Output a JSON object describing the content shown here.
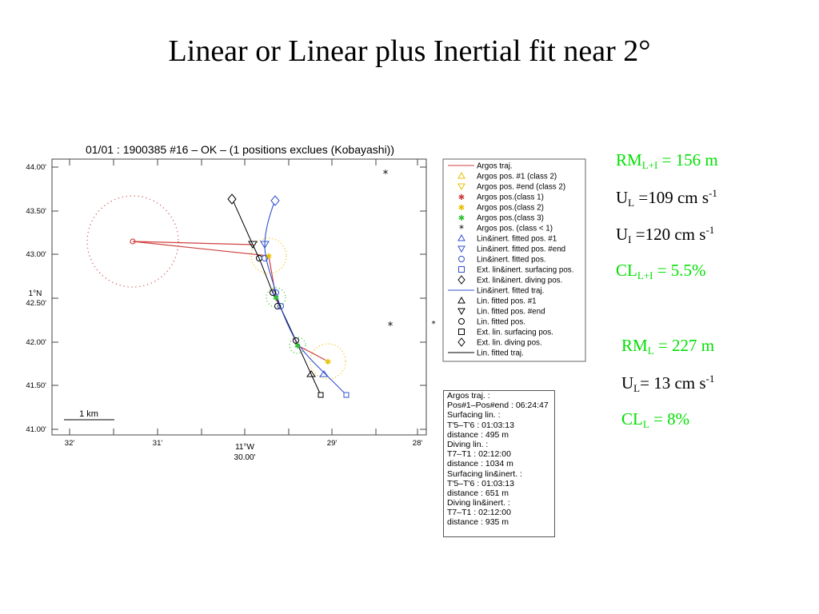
{
  "title": "Linear or Linear plus Inertial fit near 2°",
  "plot": {
    "header": "01/01 : 1900385 #16 – OK – (1 positions exclues (Kobayashi))",
    "y_ticks": [
      "44.00'",
      "43.50'",
      "43.00'",
      "42.50'",
      "42.00'",
      "41.50'",
      "41.00'"
    ],
    "y_axis_label": "1°N",
    "x_ticks": [
      "32'",
      "31'",
      "29'",
      "28'"
    ],
    "x_axis_label": "11°W",
    "x_mid_tick": "30.00'",
    "scale_label": "1 km"
  },
  "legend": [
    {
      "label": "Argos traj.",
      "symbol": "line",
      "color": "#d04040"
    },
    {
      "label": "Argos pos. #1 (class 2)",
      "symbol": "triangle-up",
      "color": "#e8c000"
    },
    {
      "label": "Argos pos. #end (class 2)",
      "symbol": "triangle-down",
      "color": "#e8c000"
    },
    {
      "label": "Argos pos.(class 1)",
      "symbol": "star",
      "color": "#d04040"
    },
    {
      "label": "Argos pos.(class 2)",
      "symbol": "star",
      "color": "#e8c000"
    },
    {
      "label": "Argos pos.(class 3)",
      "symbol": "star",
      "color": "#30c030"
    },
    {
      "label": "Argos pos. (class < 1)",
      "symbol": "asterisk",
      "color": "#000000"
    },
    {
      "label": "Lin&inert. fitted pos. #1",
      "symbol": "triangle-up",
      "color": "#3050d0"
    },
    {
      "label": "Lin&inert. fitted pos. #end",
      "symbol": "triangle-down",
      "color": "#3050d0"
    },
    {
      "label": "Lin&inert. fitted pos.",
      "symbol": "circle",
      "color": "#3050d0"
    },
    {
      "label": "Ext. lin&inert. surfacing pos.",
      "symbol": "square",
      "color": "#3050d0"
    },
    {
      "label": "Ext. lin&inert. diving pos.",
      "symbol": "diamond",
      "color": "#000000"
    },
    {
      "label": "Lin&inert. fitted traj.",
      "symbol": "line",
      "color": "#3050d0"
    },
    {
      "label": "Lin. fitted pos. #1",
      "symbol": "triangle-up",
      "color": "#000000"
    },
    {
      "label": "Lin. fitted pos. #end",
      "symbol": "triangle-down",
      "color": "#000000"
    },
    {
      "label": "Lin. fitted pos.",
      "symbol": "circle",
      "color": "#000000"
    },
    {
      "label": "Ext. lin. surfacing pos.",
      "symbol": "square",
      "color": "#000000"
    },
    {
      "label": "Ext. lin. diving pos.",
      "symbol": "diamond",
      "color": "#000000"
    },
    {
      "label": "Lin. fitted traj.",
      "symbol": "line",
      "color": "#000000"
    }
  ],
  "info_box": [
    "Argos traj. :",
    "Pos#1–Pos#end : 06:24:47",
    "Surfacing lin. :",
    "T'5–T'6 : 01:03:13",
    "distance : 495 m",
    "Diving lin. :",
    "T7–T1 : 02:12:00",
    "distance : 1034 m",
    "Surfacing lin&inert. :",
    "T'5–T'6 : 01:03:13",
    "distance : 651 m",
    "Diving lin&inert. :",
    "T7–T1 : 02:12:00",
    "distance : 935 m"
  ],
  "stats_lin_inert": {
    "rm_main": "RM",
    "rm_sub": "L+I",
    "rm_rest": " = 156 m",
    "ul_main": "U",
    "ul_sub": "L",
    "ul_rest": " =109 cm s",
    "ul_sup": "-1",
    "ui_main": "U",
    "ui_sub": "I",
    "ui_rest": " =120 cm s",
    "ui_sup": "-1",
    "cl_main": "CL",
    "cl_sub": "L+I",
    "cl_rest": " = 5.5%"
  },
  "stats_lin": {
    "rm_main": "RM",
    "rm_sub": "L",
    "rm_rest": " = 227 m",
    "ul_main": "U",
    "ul_sub": "L",
    "ul_rest": "= 13 cm s",
    "ul_sup": "-1",
    "cl_main": "CL",
    "cl_sub": "L",
    "cl_rest": " = 8%"
  },
  "colors": {
    "green_stat": "#00e000",
    "argos": "#d04040",
    "lin_inert": "#3050d0",
    "lin": "#000000",
    "class2": "#e8c000",
    "class3": "#30c030"
  }
}
